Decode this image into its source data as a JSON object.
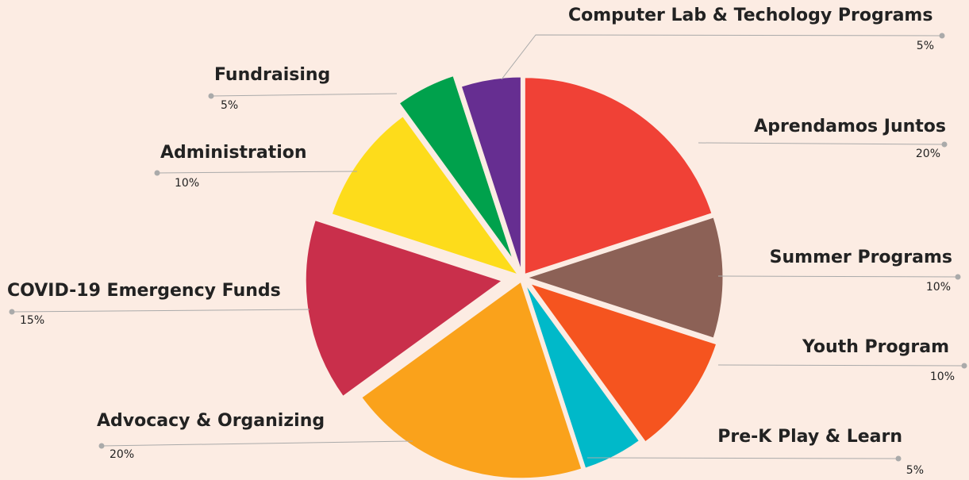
{
  "chart_data": {
    "type": "pie",
    "categories": [
      "Aprendamos Juntos",
      "Summer Programs",
      "Youth Program",
      "Pre-K Play & Learn",
      "Advocacy & Organizing",
      "COVID-19 Emergency Funds",
      "Administration",
      "Fundraising",
      "Computer Lab & Techology Programs"
    ],
    "values": [
      20,
      10,
      10,
      5,
      20,
      15,
      10,
      5,
      5
    ],
    "value_labels": [
      "20%",
      "10%",
      "10%",
      "5%",
      "20%",
      "15%",
      "10%",
      "5%",
      "5%"
    ],
    "colors": [
      "#f04136",
      "#8c6156",
      "#f5541f",
      "#00b9c9",
      "#faa21b",
      "#c92f4b",
      "#fddc1b",
      "#00a14c",
      "#662e91"
    ]
  }
}
